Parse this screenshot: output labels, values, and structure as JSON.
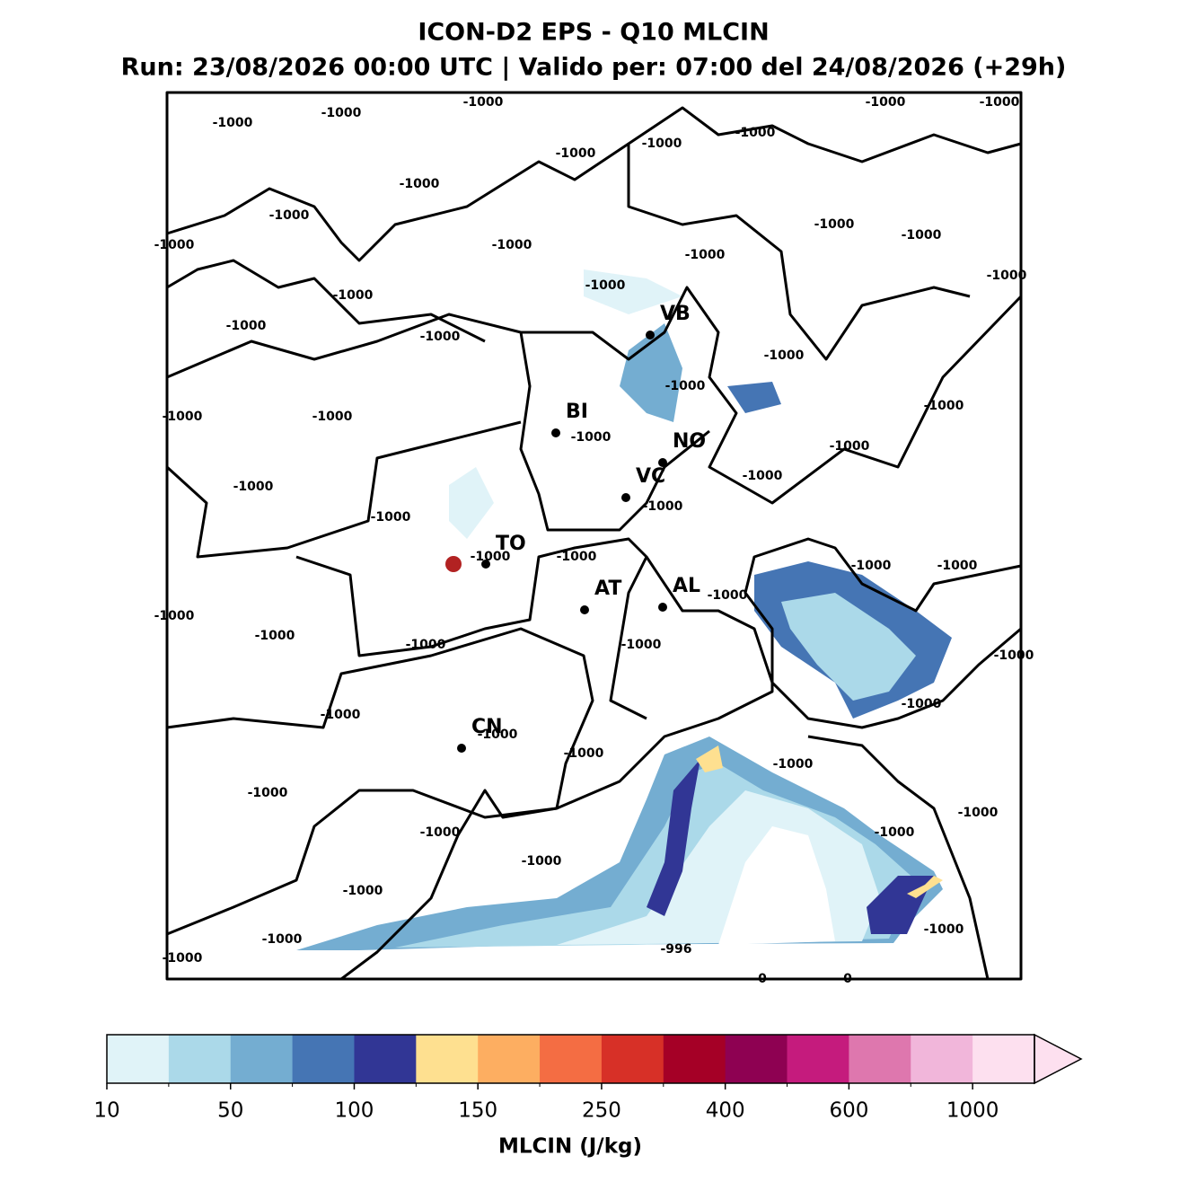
{
  "header": {
    "title": "ICON-D2 EPS - Q10 MLCIN",
    "subtitle": "Run: 23/08/2026 00:00 UTC | Valido per: 07:00 del 24/08/2026 (+29h)"
  },
  "cities": [
    "VB",
    "BI",
    "NO",
    "VC",
    "TO",
    "AT",
    "AL",
    "CN"
  ],
  "contour_labels": [
    "-1000",
    "-1000",
    "-1000",
    "-1000",
    "-1000",
    "-1000",
    "-1000",
    "-1000",
    "-1000",
    "-1000",
    "-1000",
    "-1000",
    "-1000",
    "-1000",
    "-1000",
    "-1000",
    "-1000",
    "-1000",
    "-1000",
    "-1000",
    "-1000",
    "-1000",
    "-1000",
    "-1000",
    "-1000",
    "-1000",
    "-1000",
    "-1000",
    "-1000",
    "-1000",
    "-1000",
    "-1000",
    "-1000",
    "-1000",
    "-1000",
    "-1000",
    "-1000",
    "-1000",
    "-1000",
    "-1000",
    "-1000",
    "-1000",
    "-1000",
    "-1000",
    "-1000",
    "-1000",
    "-1000",
    "-1000",
    "-1000",
    "-1000",
    "-1000",
    "-1000",
    "-1000",
    "-1000",
    "-1000",
    "-996",
    "0",
    "0"
  ],
  "colorbar": {
    "label": "MLCIN (J/kg)",
    "ticks": [
      10,
      50,
      100,
      150,
      250,
      400,
      600,
      1000
    ],
    "colors": [
      "#e0f3f8",
      "#abd9e9",
      "#74add1",
      "#4575b4",
      "#313695",
      "#fee090",
      "#fdae61",
      "#f46d43",
      "#d73027",
      "#a50026",
      "#8e0152",
      "#c51b7d",
      "#de77ae",
      "#f1b6da",
      "#fde0ef"
    ]
  }
}
